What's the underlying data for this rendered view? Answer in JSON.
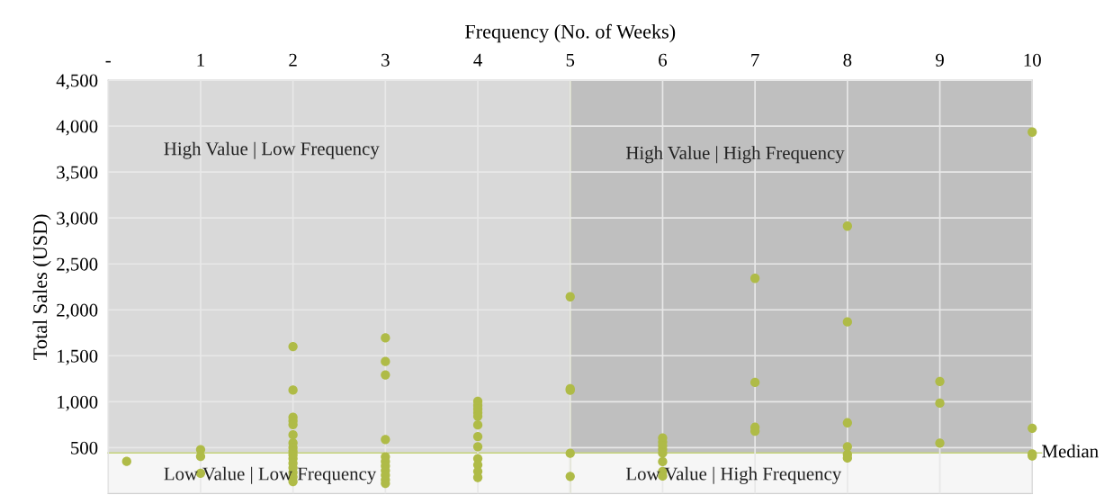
{
  "chart_data": {
    "type": "scatter",
    "xlabel": "Frequency (No. of Weeks)",
    "ylabel": "Total Sales (USD)",
    "xlim": [
      0,
      10
    ],
    "ylim": [
      0,
      4500
    ],
    "xticks": [
      {
        "value": 0,
        "label": "-"
      },
      1,
      2,
      3,
      4,
      5,
      6,
      7,
      8,
      9,
      10
    ],
    "yticks": [
      {
        "value": 500,
        "label": "500"
      },
      {
        "value": 1000,
        "label": "1,000"
      },
      {
        "value": 1500,
        "label": "1,500"
      },
      {
        "value": 2000,
        "label": "2,000"
      },
      {
        "value": 2500,
        "label": "2,500"
      },
      {
        "value": 3000,
        "label": "3,000"
      },
      {
        "value": 3500,
        "label": "3,500"
      },
      {
        "value": 4000,
        "label": "4,000"
      },
      {
        "value": 4500,
        "label": "4,500"
      }
    ],
    "grid": true,
    "marker": "circle",
    "legend": false,
    "series": [
      {
        "color": "#afbb47",
        "x": [
          0.2,
          1,
          1,
          1,
          2,
          2,
          2,
          2,
          2,
          2,
          2,
          2,
          2,
          2,
          2,
          2,
          2,
          2,
          2,
          2,
          3,
          3,
          3,
          3,
          3,
          3,
          3,
          3,
          3,
          3,
          3,
          4,
          4,
          4,
          4,
          4,
          4,
          4,
          4,
          4,
          4,
          4,
          4,
          5,
          5,
          5,
          5,
          5,
          6,
          6,
          6,
          6,
          6,
          6,
          6,
          6,
          7,
          7,
          7,
          7,
          8,
          8,
          8,
          8,
          8,
          8,
          9,
          9,
          9,
          10,
          10,
          10,
          10
        ],
        "values": [
          350,
          478,
          403,
          221,
          1600,
          1126,
          830,
          790,
          750,
          639,
          550,
          500,
          460,
          420,
          380,
          330,
          280,
          230,
          180,
          130,
          1694,
          1437,
          1291,
          588,
          400,
          350,
          300,
          250,
          200,
          150,
          110,
          1003,
          960,
          920,
          880,
          840,
          746,
          620,
          510,
          380,
          311,
          240,
          175,
          2142,
          1140,
          1124,
          438,
          186,
          604,
          560,
          520,
          480,
          440,
          347,
          240,
          190,
          2343,
          1209,
          721,
          679,
          2911,
          1868,
          770,
          510,
          425,
          386,
          1220,
          984,
          549,
          3935,
          711,
          430,
          410
        ]
      }
    ],
    "bands": [
      {
        "axis": "x",
        "from": 0,
        "to": 5,
        "color": "#d9d9d9"
      },
      {
        "axis": "x",
        "from": 5,
        "to": 10,
        "color": "#bfbfbf"
      },
      {
        "axis": "y",
        "from": 0,
        "to": 442,
        "color": "#f6f6f6"
      }
    ],
    "ref_lines": [
      {
        "axis": "y",
        "value": 442,
        "label": "Median",
        "color": "#c5d37a"
      },
      {
        "axis": "x",
        "value": 5,
        "color": "#c5d37a"
      }
    ],
    "annotations": [
      "High Value | Low Frequency",
      "High Value | High Frequency",
      "Low Value | Low Frequency",
      "Low Value | High Frequency"
    ]
  }
}
